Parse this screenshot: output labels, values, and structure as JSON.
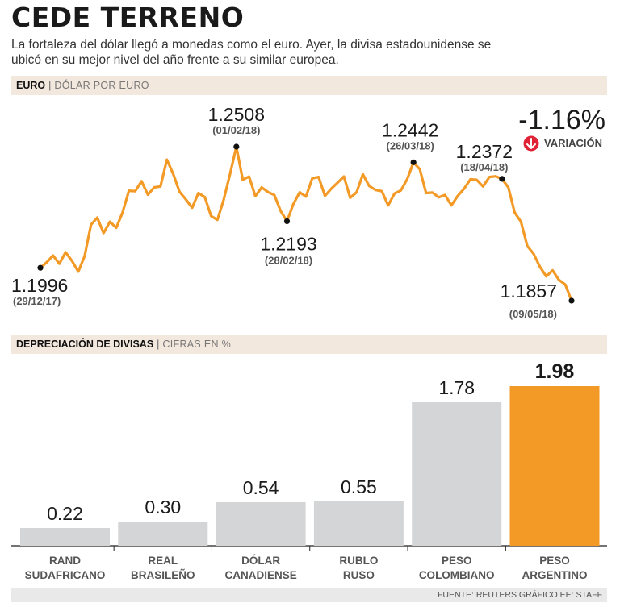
{
  "header": {
    "title": "CEDE TERRENO",
    "subtitle": "La fortaleza del dólar llegó a monedas como el euro. Ayer, la divisa estadounidense se ubicó en su mejor nivel del año frente a su similar europea."
  },
  "colors": {
    "accent": "#f39a26",
    "bar_gray": "#d3d5d6",
    "band": "#f3e8de",
    "arrow_red": "#e02236"
  },
  "chart_data": [
    {
      "type": "line",
      "section_label": "EURO",
      "section_unit": "DÓLAR POR EURO",
      "variation_value": "-1.16%",
      "variation_label": "VARIACIÓN",
      "x_range": [
        "29/12/17",
        "09/05/18"
      ],
      "ylim": [
        1.1857,
        1.2508
      ],
      "values": [
        1.1996,
        1.2019,
        1.2048,
        1.2013,
        1.2062,
        1.2025,
        1.198,
        1.2045,
        1.2178,
        1.2208,
        1.2143,
        1.2191,
        1.2165,
        1.223,
        1.2322,
        1.232,
        1.2362,
        1.2305,
        1.2336,
        1.234,
        1.2453,
        1.2393,
        1.2318,
        1.2285,
        1.225,
        1.2312,
        1.2295,
        1.2215,
        1.2199,
        1.2285,
        1.2393,
        1.2508,
        1.2368,
        1.2382,
        1.2299,
        1.2336,
        1.2316,
        1.2304,
        1.2236,
        1.2193,
        1.2265,
        1.2315,
        1.2297,
        1.2374,
        1.238,
        1.23,
        1.233,
        1.2356,
        1.2382,
        1.2292,
        1.2315,
        1.2391,
        1.2342,
        1.2325,
        1.232,
        1.226,
        1.231,
        1.2323,
        1.237,
        1.2442,
        1.2413,
        1.2312,
        1.2314,
        1.2294,
        1.2304,
        1.226,
        1.23,
        1.233,
        1.237,
        1.2368,
        1.234,
        1.238,
        1.2383,
        1.2372,
        1.2336,
        1.223,
        1.2191,
        1.2088,
        1.2055,
        1.2,
        1.196,
        1.1985,
        1.1945,
        1.1925,
        1.1857
      ],
      "annotations": [
        {
          "index": 0,
          "value": "1.1996",
          "date": "(29/12/17)"
        },
        {
          "index": 31,
          "value": "1.2508",
          "date": "(01/02/18)"
        },
        {
          "index": 39,
          "value": "1.2193",
          "date": "(28/02/18)"
        },
        {
          "index": 59,
          "value": "1.2442",
          "date": "(26/03/18)"
        },
        {
          "index": 73,
          "value": "1.2372",
          "date": "(18/04/18)"
        },
        {
          "index": 84,
          "value": "1.1857",
          "date": "(09/05/18)"
        }
      ]
    },
    {
      "type": "bar",
      "section_label": "DEPRECIACIÓN DE DIVISAS",
      "section_unit": "CIFRAS EN %",
      "categories": [
        [
          "RAND",
          "SUDAFRICANO"
        ],
        [
          "REAL",
          "BRASILEÑO"
        ],
        [
          "DÓLAR",
          "CANADIENSE"
        ],
        [
          "RUBLO",
          "RUSO"
        ],
        [
          "PESO",
          "COLOMBIANO"
        ],
        [
          "PESO",
          "ARGENTINO"
        ]
      ],
      "values": [
        0.22,
        0.3,
        0.54,
        0.55,
        1.78,
        1.98
      ],
      "labels": [
        "0.22",
        "0.30",
        "0.54",
        "0.55",
        "1.78",
        "1.98"
      ],
      "highlight_index": 5,
      "ylim": [
        0,
        2.0
      ]
    }
  ],
  "footer": {
    "source": "FUENTE: REUTERS GRÁFICO EE: STAFF"
  }
}
